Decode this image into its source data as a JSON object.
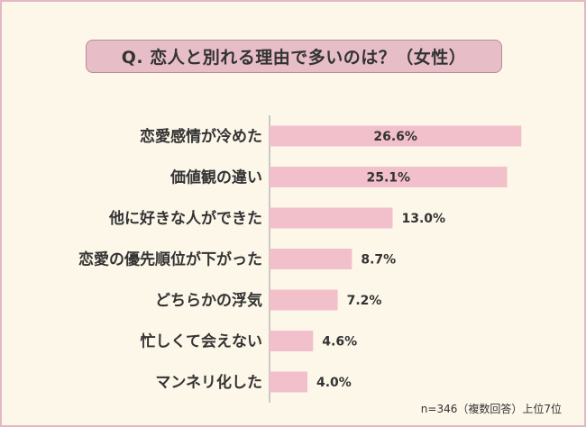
{
  "chart_data": {
    "type": "bar",
    "orientation": "horizontal",
    "title": "Q. 恋人と別れる理由で多いのは？（女性）",
    "categories": [
      "恋愛感情が冷めた",
      "価値観の違い",
      "他に好きな人ができた",
      "恋愛の優先順位が下がった",
      "どちらかの浮気",
      "忙しくて会えない",
      "マンネリ化した"
    ],
    "values": [
      26.6,
      25.1,
      13.0,
      8.7,
      7.2,
      4.6,
      4.0
    ],
    "value_labels": [
      "26.6%",
      "25.1%",
      "13.0%",
      "8.7%",
      "7.2%",
      "4.6%",
      "4.0%"
    ],
    "unit": "%",
    "xlim": [
      0,
      30
    ],
    "grid": false,
    "bar_color": "#f2c0ca",
    "note": "n=346（複数回答）上位7位"
  }
}
